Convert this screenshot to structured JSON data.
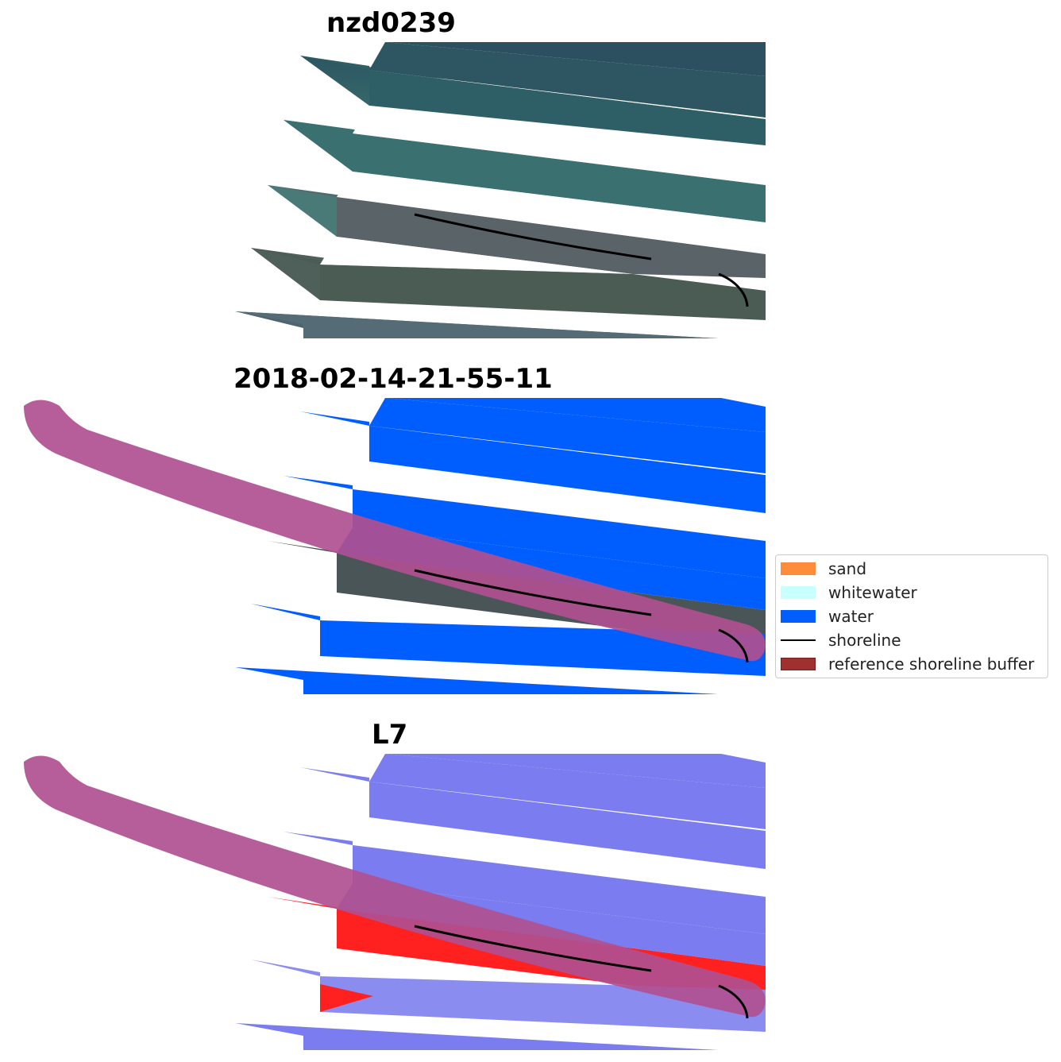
{
  "panels": [
    {
      "title": "nzd0239"
    },
    {
      "title": "2018-02-14-21-55-11"
    },
    {
      "title": "L7"
    }
  ],
  "legend": {
    "items": [
      {
        "label": "sand",
        "color": "#ff8c3a"
      },
      {
        "label": "whitewater",
        "color": "#c8ffff"
      },
      {
        "label": "water",
        "color": "#005eff"
      },
      {
        "label": "shoreline",
        "color": "#000000"
      },
      {
        "label": "reference shoreline buffer",
        "color": "#a03030"
      }
    ]
  },
  "colors": {
    "rgb_water": "#2f5f63",
    "rgb_land": "#555b5e",
    "classified_water": "#005eff",
    "buffer": "#b05090",
    "ndwi_blue": "#7a7cf0",
    "ndwi_red": "#ff2020"
  }
}
